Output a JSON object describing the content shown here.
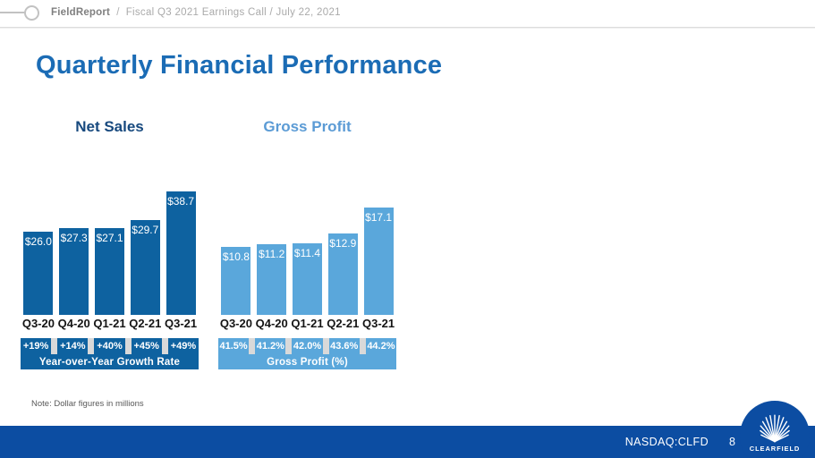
{
  "header": {
    "brand": "FieldReport",
    "separator": "/",
    "subtitle": "Fiscal Q3 2021 Earnings Call / July 22, 2021"
  },
  "title": "Quarterly Financial Performance",
  "note": "Note: Dollar figures in millions",
  "footer": {
    "ticker": "NASDAQ:CLFD",
    "page_number": "8",
    "logo_text": "CLEARFIELD",
    "logo_icon": "shell-icon",
    "bar_color": "#0c4da2"
  },
  "colors": {
    "title_blue": "#1b6cb5",
    "strip_gap_gray": "#d9d9d9",
    "header_gray": "#7f7f7f"
  },
  "chart_data": [
    {
      "type": "bar",
      "title": "Net Sales",
      "title_color": "#17497e",
      "bar_color": "#0e62a0",
      "categories": [
        "Q3-20",
        "Q4-20",
        "Q1-21",
        "Q2-21",
        "Q3-21"
      ],
      "values": [
        26.0,
        27.3,
        27.1,
        29.7,
        38.7
      ],
      "value_labels": [
        "$26.0",
        "$27.3",
        "$27.1",
        "$29.7",
        "$38.7"
      ],
      "unit": "USD millions",
      "ylim": [
        0,
        38.7
      ],
      "grid": false,
      "legend": "none",
      "footer_values": [
        "+19%",
        "+14%",
        "+40%",
        "+45%",
        "+49%"
      ],
      "footer_label": "Year-over-Year Growth Rate"
    },
    {
      "type": "bar",
      "title": "Gross Profit",
      "title_color": "#5b9bd5",
      "bar_color": "#5aa7db",
      "categories": [
        "Q3-20",
        "Q4-20",
        "Q1-21",
        "Q2-21",
        "Q3-21"
      ],
      "values": [
        10.8,
        11.2,
        11.4,
        12.9,
        17.1
      ],
      "value_labels": [
        "$10.8",
        "$11.2",
        "$11.4",
        "$12.9",
        "$17.1"
      ],
      "unit": "USD millions",
      "ylim": [
        0,
        17.1
      ],
      "grid": false,
      "legend": "none",
      "footer_values": [
        "41.5%",
        "41.2%",
        "42.0%",
        "43.6%",
        "44.2%"
      ],
      "footer_label": "Gross Profit (%)"
    }
  ]
}
